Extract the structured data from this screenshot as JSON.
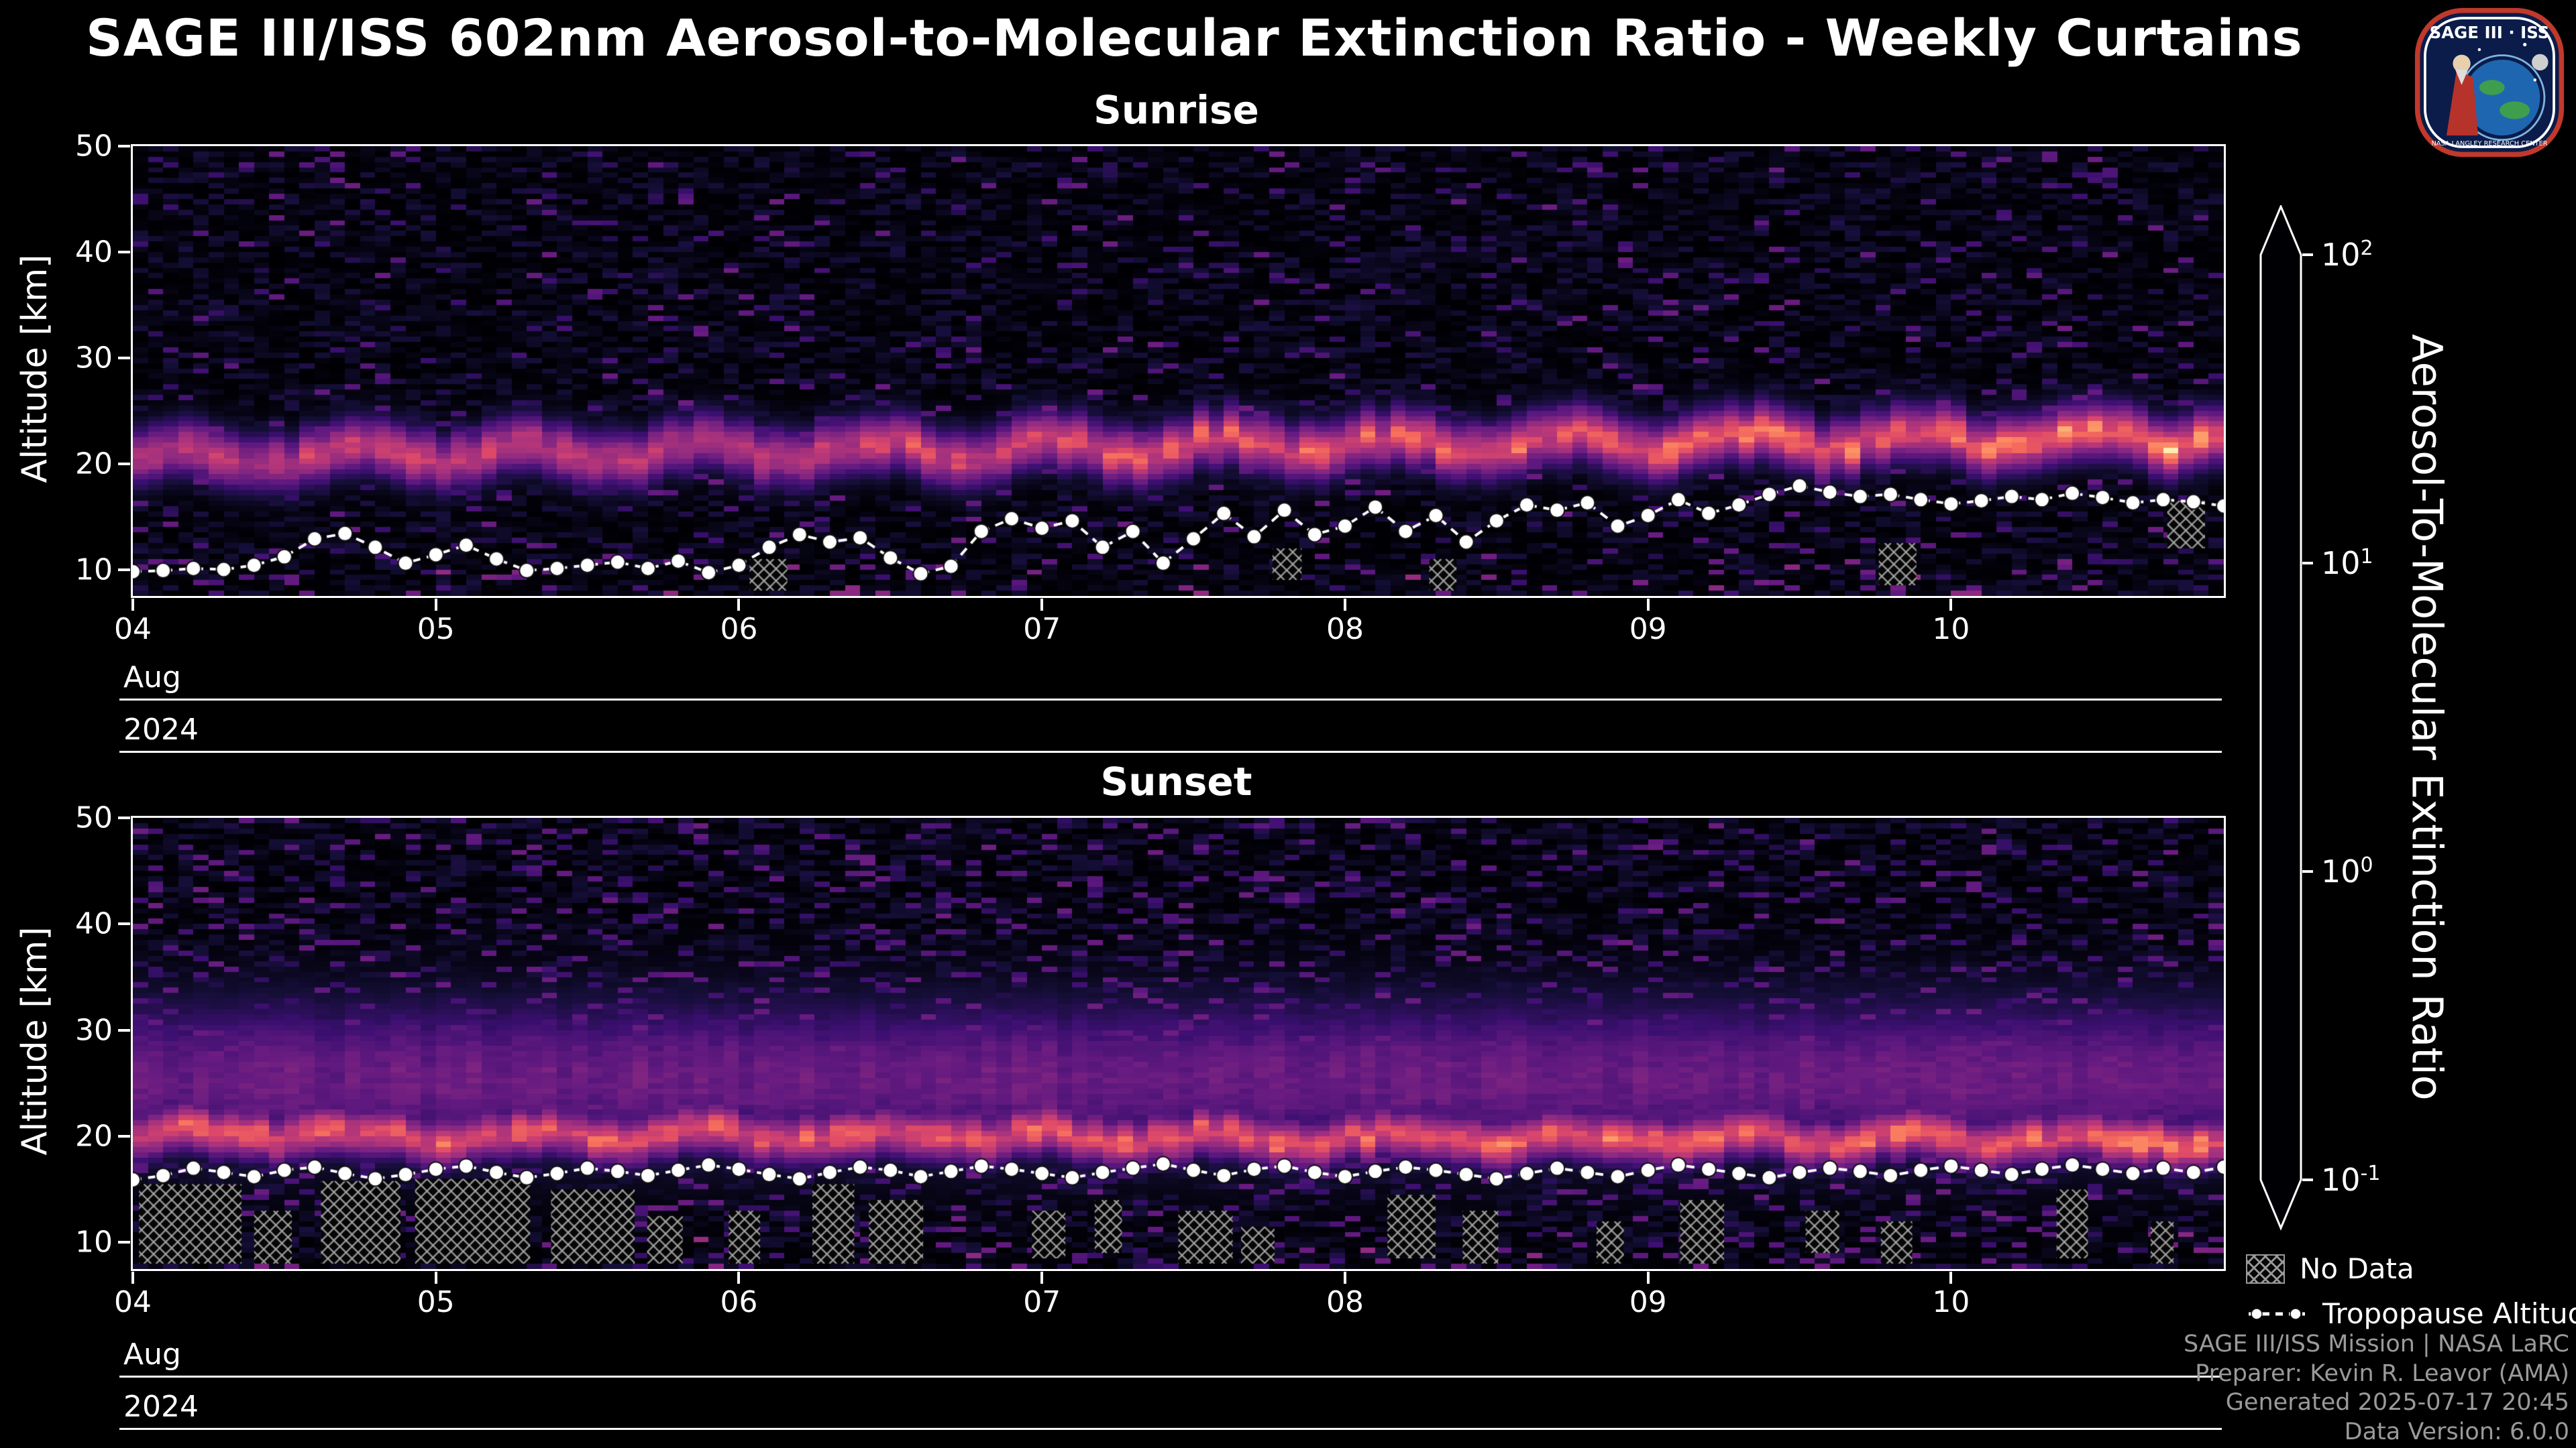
{
  "page": {
    "title": "SAGE III/ISS 602nm Aerosol-to-Molecular Extinction Ratio - Weekly Curtains"
  },
  "logo": {
    "title": "SAGE III · ISS",
    "subtext": "NASA LANGLEY RESEARCH CENTER"
  },
  "colorbar": {
    "label": "Aerosol-To-Molecular Extinction Ratio",
    "scale": "log",
    "min": 0.1,
    "max": 100,
    "tick_base": "10",
    "tick_exponents": [
      2,
      1,
      0,
      -1
    ],
    "colormap": "magma",
    "colormap_stops": [
      {
        "t": 0.0,
        "color": "#000004"
      },
      {
        "t": 0.14,
        "color": "#140e36"
      },
      {
        "t": 0.29,
        "color": "#3b0f70"
      },
      {
        "t": 0.43,
        "color": "#641a80"
      },
      {
        "t": 0.57,
        "color": "#8c2981"
      },
      {
        "t": 0.71,
        "color": "#b73779"
      },
      {
        "t": 0.78,
        "color": "#de4968"
      },
      {
        "t": 0.86,
        "color": "#f7705c"
      },
      {
        "t": 0.93,
        "color": "#fe9f6d"
      },
      {
        "t": 1.0,
        "color": "#fcfdbf"
      }
    ]
  },
  "legend": {
    "no_data_label": "No Data",
    "tropopause_label": "Tropopause Altitude"
  },
  "footer": {
    "lines": [
      "SAGE III/ISS Mission | NASA LaRC",
      "Preparer: Kevin R. Leavor (AMA)",
      "Generated 2025-07-17 20:45",
      "Data Version: 6.0.0"
    ]
  },
  "chart_data": [
    {
      "type": "heatmap",
      "title": "Sunrise",
      "x_axis": {
        "min": 4,
        "max": 10.9,
        "tick_days": [
          4,
          5,
          6,
          7,
          8,
          9,
          10
        ],
        "tick_labels": [
          "04",
          "05",
          "06",
          "07",
          "08",
          "09",
          "10"
        ],
        "month": "Aug",
        "year": "2024"
      },
      "y_axis": {
        "label": "Altitude [km]",
        "min": 7.5,
        "max": 50,
        "ticks": [
          10,
          20,
          30,
          40,
          50
        ],
        "tick_labels": [
          "10",
          "20",
          "30",
          "40",
          "50"
        ]
      },
      "color_scale": {
        "type": "log",
        "min": 0.1,
        "max": 100
      },
      "field": {
        "seed": 11,
        "cols": 138,
        "rows": 85,
        "band_center_left": 20.6,
        "band_center_right": 22.6,
        "band_wobble": 0.9,
        "band_sigma": 1.9,
        "band_peak_left": 1.0,
        "band_peak_right": 1.6,
        "haze_center": 0,
        "haze_sigma": 0,
        "haze_peak": -1,
        "speckle": 0.16,
        "bottom_red": 0.05
      },
      "plume_band_km": [
        18,
        26
      ],
      "tropopause_km": [
        9.8,
        9.9,
        10.1,
        10.0,
        10.4,
        11.2,
        12.9,
        13.4,
        12.1,
        10.6,
        11.4,
        12.3,
        11.0,
        9.9,
        10.1,
        10.4,
        10.7,
        10.1,
        10.8,
        9.7,
        10.4,
        12.1,
        13.3,
        12.6,
        13.0,
        11.1,
        9.6,
        10.3,
        13.6,
        14.8,
        13.9,
        14.6,
        12.1,
        13.6,
        10.6,
        12.9,
        15.3,
        13.1,
        15.6,
        13.3,
        14.1,
        15.9,
        13.6,
        15.1,
        12.6,
        14.6,
        16.1,
        15.6,
        16.3,
        14.1,
        15.1,
        16.6,
        15.3,
        16.1,
        17.1,
        17.9,
        17.3,
        16.9,
        17.1,
        16.6,
        16.2,
        16.5,
        16.9,
        16.6,
        17.2,
        16.8,
        16.3,
        16.6,
        16.4,
        16.0
      ],
      "no_data_regions": [
        {
          "x0": 0.295,
          "x1": 0.313,
          "y0": 8.0,
          "y1": 11.0
        },
        {
          "x0": 0.545,
          "x1": 0.559,
          "y0": 9.0,
          "y1": 12.0
        },
        {
          "x0": 0.62,
          "x1": 0.633,
          "y0": 8.0,
          "y1": 11.0
        },
        {
          "x0": 0.835,
          "x1": 0.853,
          "y0": 8.5,
          "y1": 12.5
        },
        {
          "x0": 0.973,
          "x1": 0.991,
          "y0": 12.0,
          "y1": 16.5
        }
      ]
    },
    {
      "type": "heatmap",
      "title": "Sunset",
      "x_axis": {
        "min": 4,
        "max": 10.9,
        "tick_days": [
          4,
          5,
          6,
          7,
          8,
          9,
          10
        ],
        "tick_labels": [
          "04",
          "05",
          "06",
          "07",
          "08",
          "09",
          "10"
        ],
        "month": "Aug",
        "year": "2024"
      },
      "y_axis": {
        "label": "Altitude [km]",
        "min": 7.5,
        "max": 50,
        "ticks": [
          10,
          20,
          30,
          40,
          50
        ],
        "tick_labels": [
          "10",
          "20",
          "30",
          "40",
          "50"
        ]
      },
      "color_scale": {
        "type": "log",
        "min": 0.1,
        "max": 100
      },
      "field": {
        "seed": 23,
        "cols": 138,
        "rows": 85,
        "band_center_left": 20.3,
        "band_center_right": 19.6,
        "band_wobble": 0.5,
        "band_sigma": 1.7,
        "band_peak_left": 1.35,
        "band_peak_right": 1.5,
        "haze_center": 25.5,
        "haze_sigma": 5.2,
        "haze_peak": 0.35,
        "speckle": 0.3,
        "bottom_red": 0.03
      },
      "plume_band_km": [
        17,
        33
      ],
      "tropopause_km": [
        15.9,
        16.3,
        17.0,
        16.6,
        16.2,
        16.8,
        17.1,
        16.5,
        16.0,
        16.4,
        16.9,
        17.2,
        16.6,
        16.1,
        16.5,
        17.0,
        16.7,
        16.3,
        16.8,
        17.3,
        16.9,
        16.4,
        16.0,
        16.6,
        17.1,
        16.8,
        16.2,
        16.7,
        17.2,
        16.9,
        16.5,
        16.1,
        16.6,
        17.0,
        17.4,
        16.8,
        16.3,
        16.9,
        17.2,
        16.6,
        16.2,
        16.7,
        17.1,
        16.8,
        16.4,
        16.0,
        16.5,
        17.0,
        16.6,
        16.2,
        16.8,
        17.3,
        16.9,
        16.5,
        16.1,
        16.6,
        17.0,
        16.7,
        16.3,
        16.8,
        17.2,
        16.8,
        16.4,
        16.9,
        17.3,
        16.9,
        16.5,
        17.0,
        16.6,
        17.1
      ],
      "no_data_regions": [
        {
          "x0": 0.003,
          "x1": 0.052,
          "y0": 8.0,
          "y1": 15.5
        },
        {
          "x0": 0.058,
          "x1": 0.076,
          "y0": 8.0,
          "y1": 13.0
        },
        {
          "x0": 0.09,
          "x1": 0.128,
          "y0": 8.0,
          "y1": 15.8
        },
        {
          "x0": 0.135,
          "x1": 0.19,
          "y0": 8.0,
          "y1": 16.0
        },
        {
          "x0": 0.2,
          "x1": 0.24,
          "y0": 8.0,
          "y1": 15.0
        },
        {
          "x0": 0.246,
          "x1": 0.263,
          "y0": 8.0,
          "y1": 12.5
        },
        {
          "x0": 0.285,
          "x1": 0.3,
          "y0": 8.0,
          "y1": 13.0
        },
        {
          "x0": 0.325,
          "x1": 0.345,
          "y0": 8.0,
          "y1": 15.5
        },
        {
          "x0": 0.352,
          "x1": 0.378,
          "y0": 8.0,
          "y1": 14.0
        },
        {
          "x0": 0.43,
          "x1": 0.446,
          "y0": 8.5,
          "y1": 13.0
        },
        {
          "x0": 0.46,
          "x1": 0.473,
          "y0": 9.0,
          "y1": 14.0
        },
        {
          "x0": 0.5,
          "x1": 0.526,
          "y0": 8.0,
          "y1": 13.0
        },
        {
          "x0": 0.53,
          "x1": 0.546,
          "y0": 8.0,
          "y1": 11.5
        },
        {
          "x0": 0.6,
          "x1": 0.623,
          "y0": 8.5,
          "y1": 14.5
        },
        {
          "x0": 0.636,
          "x1": 0.653,
          "y0": 8.0,
          "y1": 13.0
        },
        {
          "x0": 0.7,
          "x1": 0.713,
          "y0": 8.0,
          "y1": 12.0
        },
        {
          "x0": 0.74,
          "x1": 0.761,
          "y0": 8.0,
          "y1": 14.0
        },
        {
          "x0": 0.8,
          "x1": 0.816,
          "y0": 9.0,
          "y1": 13.0
        },
        {
          "x0": 0.836,
          "x1": 0.851,
          "y0": 8.0,
          "y1": 12.0
        },
        {
          "x0": 0.92,
          "x1": 0.935,
          "y0": 8.5,
          "y1": 15.0
        },
        {
          "x0": 0.965,
          "x1": 0.976,
          "y0": 8.0,
          "y1": 12.0
        }
      ]
    }
  ]
}
